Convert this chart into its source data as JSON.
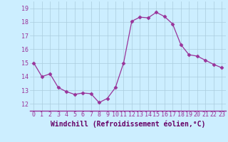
{
  "x": [
    0,
    1,
    2,
    3,
    4,
    5,
    6,
    7,
    8,
    9,
    10,
    11,
    12,
    13,
    14,
    15,
    16,
    17,
    18,
    19,
    20,
    21,
    22,
    23
  ],
  "y": [
    15.0,
    14.0,
    14.2,
    13.2,
    12.9,
    12.7,
    12.8,
    12.75,
    12.1,
    12.4,
    13.2,
    15.0,
    18.05,
    18.35,
    18.3,
    18.7,
    18.4,
    17.85,
    16.35,
    15.6,
    15.5,
    15.2,
    14.9,
    14.65
  ],
  "line_color": "#993399",
  "marker": "D",
  "marker_size": 2.5,
  "bg_color": "#cceeff",
  "grid_color": "#aaccdd",
  "xlabel": "Windchill (Refroidissement éolien,°C)",
  "xlabel_fontsize": 7,
  "tick_fontsize": 6,
  "ylim": [
    11.5,
    19.5
  ],
  "xlim": [
    -0.5,
    23.5
  ],
  "yticks": [
    12,
    13,
    14,
    15,
    16,
    17,
    18,
    19
  ],
  "xticks": [
    0,
    1,
    2,
    3,
    4,
    5,
    6,
    7,
    8,
    9,
    10,
    11,
    12,
    13,
    14,
    15,
    16,
    17,
    18,
    19,
    20,
    21,
    22,
    23
  ]
}
